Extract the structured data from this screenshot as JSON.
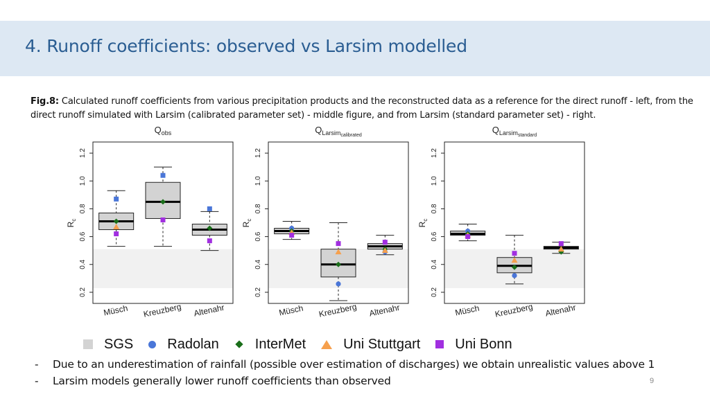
{
  "slide": {
    "title": "4. Runoff coefficients: observed vs Larsim modelled",
    "caption_label": "Fig.8:",
    "caption_text": " Calculated runoff coefficients from various precipitation products and the reconstructed data as a reference for the direct runoff - left, from the direct runoff simulated with Larsim (calibrated parameter set) - middle figure, and from Larsim (standard parameter set) - right.",
    "bullets": [
      "Due to an underestimation of rainfall (possible over estimation of discharges) we obtain unrealistic values above 1",
      "Larsim models generally lower runoff coefficients than observed"
    ],
    "bullet_marker": "-",
    "page_number": "9"
  },
  "legend": [
    {
      "label": "SGS",
      "color": "#d3d3d3",
      "shape": "square"
    },
    {
      "label": "Radolan",
      "color": "#4a76d8",
      "shape": "circle"
    },
    {
      "label": "InterMet",
      "color": "#1a6e1a",
      "shape": "diamond"
    },
    {
      "label": "Uni Stuttgart",
      "color": "#f6a04d",
      "shape": "triangle"
    },
    {
      "label": "Uni Bonn",
      "color": "#a12fe0",
      "shape": "square"
    }
  ],
  "chart_data": [
    {
      "type": "boxplot",
      "title_main": "Q",
      "title_sub": "obs",
      "ylabel": "R",
      "ylabel_sub": "c",
      "ylim": [
        0.12,
        1.28
      ],
      "yticks": [
        "0.2",
        "0.4",
        "0.6",
        "0.8",
        "1.0",
        "1.2"
      ],
      "ytick_values": [
        0.2,
        0.4,
        0.6,
        0.8,
        1.0,
        1.2
      ],
      "sgs_band": [
        0.23,
        0.51
      ],
      "categories": [
        "Müsch",
        "Kreuzberg",
        "Altenahr"
      ],
      "boxes": [
        {
          "whisker_low": 0.53,
          "q1": 0.65,
          "median": 0.71,
          "q3": 0.77,
          "whisker_high": 0.93
        },
        {
          "whisker_low": 0.53,
          "q1": 0.73,
          "median": 0.85,
          "q3": 0.99,
          "whisker_high": 1.1
        },
        {
          "whisker_low": 0.5,
          "q1": 0.61,
          "median": 0.65,
          "q3": 0.69,
          "whisker_high": 0.78
        }
      ],
      "series": [
        {
          "name": "Radolan",
          "shape": "circle",
          "color": "#4a76d8",
          "values": [
            null,
            null,
            null
          ]
        },
        {
          "name": "InterMet",
          "shape": "diamond",
          "color": "#1a6e1a",
          "values": [
            0.71,
            0.85,
            0.66
          ]
        },
        {
          "name": "Uni Stuttgart",
          "shape": "triangle",
          "color": "#f6a04d",
          "values": [
            0.67,
            null,
            null
          ]
        },
        {
          "name": "Uni Bonn",
          "shape": "square",
          "color": "#a12fe0",
          "values": [
            0.62,
            0.72,
            0.57
          ]
        },
        {
          "name": "Radolan-square",
          "shape": "square",
          "color": "#4a76d8",
          "values": [
            0.87,
            1.04,
            0.8
          ]
        }
      ]
    },
    {
      "type": "boxplot",
      "title_main": "Q",
      "title_sub": "Larsim",
      "title_subsub": "calibrated",
      "ylabel": "R",
      "ylabel_sub": "c",
      "ylim": [
        0.12,
        1.28
      ],
      "yticks": [
        "0.2",
        "0.4",
        "0.6",
        "0.8",
        "1.0",
        "1.2"
      ],
      "ytick_values": [
        0.2,
        0.4,
        0.6,
        0.8,
        1.0,
        1.2
      ],
      "sgs_band": [
        0.23,
        0.51
      ],
      "categories": [
        "Müsch",
        "Kreuzberg",
        "Altenahr"
      ],
      "boxes": [
        {
          "whisker_low": 0.58,
          "q1": 0.62,
          "median": 0.64,
          "q3": 0.66,
          "whisker_high": 0.71
        },
        {
          "whisker_low": 0.14,
          "q1": 0.31,
          "median": 0.4,
          "q3": 0.51,
          "whisker_high": 0.7
        },
        {
          "whisker_low": 0.47,
          "q1": 0.51,
          "median": 0.53,
          "q3": 0.55,
          "whisker_high": 0.61
        }
      ],
      "series": [
        {
          "name": "Radolan",
          "shape": "circle",
          "color": "#4a76d8",
          "values": [
            0.66,
            0.26,
            0.49
          ]
        },
        {
          "name": "InterMet",
          "shape": "diamond",
          "color": "#1a6e1a",
          "values": [
            0.64,
            0.4,
            0.51
          ]
        },
        {
          "name": "Uni Stuttgart",
          "shape": "triangle",
          "color": "#f6a04d",
          "values": [
            0.63,
            0.49,
            0.5
          ]
        },
        {
          "name": "Uni Bonn",
          "shape": "square",
          "color": "#a12fe0",
          "values": [
            0.61,
            0.55,
            0.56
          ]
        }
      ]
    },
    {
      "type": "boxplot",
      "title_main": "Q",
      "title_sub": "Larsim",
      "title_subsub": "standard",
      "ylabel": "R",
      "ylabel_sub": "c",
      "ylim": [
        0.12,
        1.28
      ],
      "yticks": [
        "0.2",
        "0.4",
        "0.6",
        "0.8",
        "1.0",
        "1.2"
      ],
      "ytick_values": [
        0.2,
        0.4,
        0.6,
        0.8,
        1.0,
        1.2
      ],
      "sgs_band": [
        0.23,
        0.51
      ],
      "categories": [
        "Müsch",
        "Kreuzberg",
        "Altenahr"
      ],
      "boxes": [
        {
          "whisker_low": 0.57,
          "q1": 0.61,
          "median": 0.62,
          "q3": 0.64,
          "whisker_high": 0.69
        },
        {
          "whisker_low": 0.26,
          "q1": 0.34,
          "median": 0.39,
          "q3": 0.45,
          "whisker_high": 0.61
        },
        {
          "whisker_low": 0.48,
          "q1": 0.51,
          "median": 0.52,
          "q3": 0.53,
          "whisker_high": 0.56
        }
      ],
      "series": [
        {
          "name": "Radolan",
          "shape": "circle",
          "color": "#4a76d8",
          "values": [
            0.64,
            0.32,
            0.5
          ]
        },
        {
          "name": "InterMet",
          "shape": "diamond",
          "color": "#1a6e1a",
          "values": [
            0.62,
            0.38,
            0.49
          ]
        },
        {
          "name": "Uni Stuttgart",
          "shape": "triangle",
          "color": "#f6a04d",
          "values": [
            0.61,
            0.43,
            0.51
          ]
        },
        {
          "name": "Uni Bonn",
          "shape": "square",
          "color": "#a12fe0",
          "values": [
            0.6,
            0.48,
            0.55
          ]
        }
      ]
    }
  ]
}
